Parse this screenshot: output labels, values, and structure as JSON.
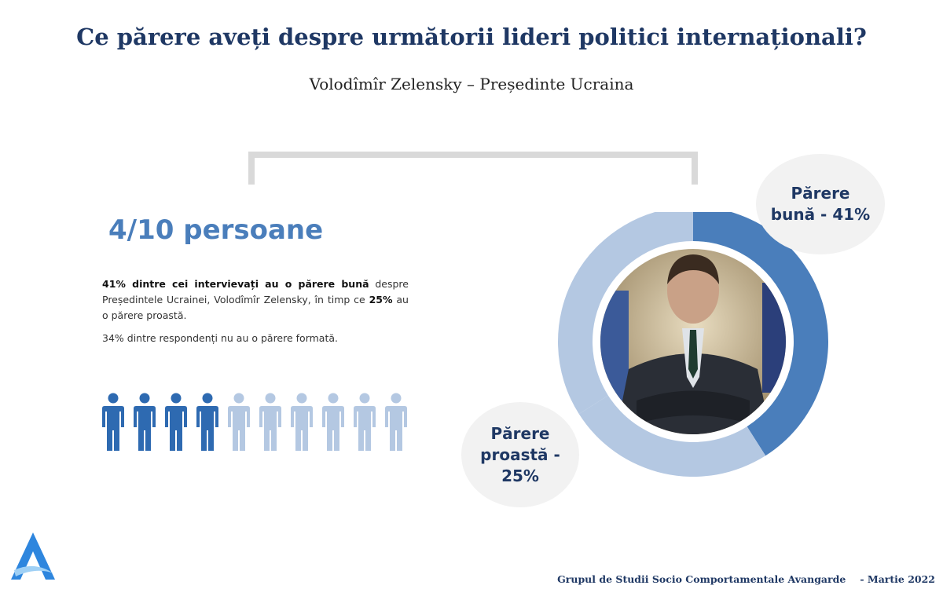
{
  "header": {
    "title": "Ce părere aveți despre următorii lideri politici internaționali?",
    "subtitle": "Volodîmîr Zelensky – Președinte Ucraina"
  },
  "headline": "4/10 persoane",
  "paragraph": {
    "bold_intro": "41% dintre cei intervievați au o părere bună",
    "middle": " despre Președintele Ucrainei, Volodîmîr Zelensky, în timp ce ",
    "bold_pct": "25%",
    "end": " au o părere proastă."
  },
  "paragraph2": "34% dintre respondenți nu au o părere formată.",
  "people_icons": {
    "total": 10,
    "highlighted": 4,
    "color_highlighted": "#2e6ab1",
    "color_muted": "#b4c8e2"
  },
  "chart_data": {
    "type": "pie",
    "variant": "donut",
    "slices": [
      {
        "label": "Părere bună - 41%",
        "value": 41,
        "color": "#4a7ebb"
      },
      {
        "label": "Părere proastă - 25%",
        "value": 25,
        "color": "#b4c8e2"
      },
      {
        "label": "",
        "value": 34,
        "color": "#b4c8e2"
      }
    ]
  },
  "bubbles": {
    "good": "Părere bună - 41%",
    "bad": "Părere proastă - 25%"
  },
  "photo": {
    "icon": "person-photo"
  },
  "logo": {
    "icon": "avangarde-logo-icon",
    "color": "#2e86de"
  },
  "footer": {
    "org": "Grupul de Studii Socio Comportamentale Avangarde",
    "date": "- Martie 2022"
  }
}
